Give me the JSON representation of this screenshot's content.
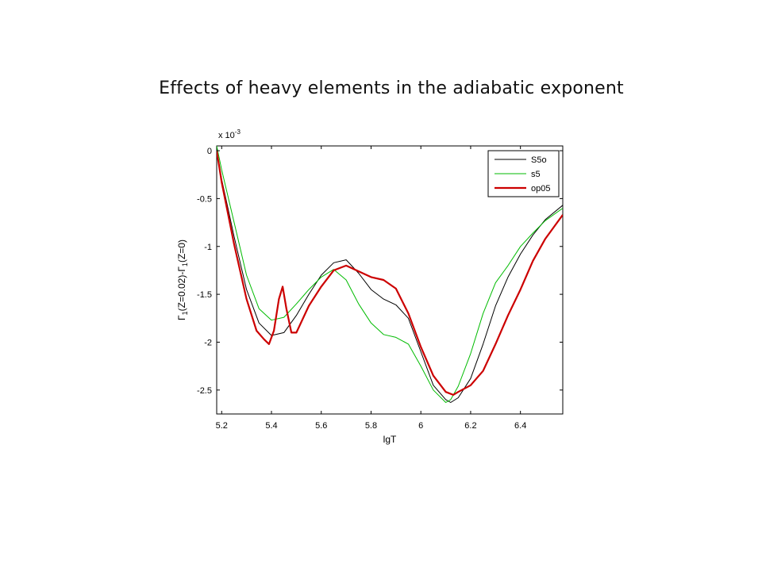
{
  "slide": {
    "title": "Effects of heavy elements in the adiabatic exponent"
  },
  "chart_data": {
    "type": "line",
    "title": "",
    "xlabel": "lgT",
    "ylabel": "Γ1(Z=0.02)-Γ1(Z=0)",
    "ylabel_parts": {
      "g1": "Γ",
      "s1": "1",
      "mid": "(Z=0.02)-Γ",
      "s2": "1",
      "end": "(Z=0)"
    },
    "y_multiplier_label": {
      "base": "x 10",
      "exp": "-3"
    },
    "xlim": [
      5.18,
      6.57
    ],
    "ylim": [
      -2.75,
      0.05
    ],
    "x_ticks": [
      5.2,
      5.4,
      5.6,
      5.8,
      6.0,
      6.2,
      6.4
    ],
    "x_tick_labels": [
      "5.2",
      "5.4",
      "5.6",
      "5.8",
      "6",
      "6.2",
      "6.4"
    ],
    "y_ticks": [
      0,
      -0.5,
      -1,
      -1.5,
      -2,
      -2.5
    ],
    "y_tick_labels": [
      "0",
      "-0.5",
      "-1",
      "-1.5",
      "-2",
      "-2.5"
    ],
    "grid": false,
    "legend_position": "top-right",
    "series": [
      {
        "name": "S5o",
        "color": "#000000",
        "width": 1,
        "points": [
          [
            5.18,
            0.0
          ],
          [
            5.2,
            -0.3
          ],
          [
            5.25,
            -0.9
          ],
          [
            5.3,
            -1.45
          ],
          [
            5.35,
            -1.8
          ],
          [
            5.4,
            -1.93
          ],
          [
            5.45,
            -1.9
          ],
          [
            5.5,
            -1.72
          ],
          [
            5.55,
            -1.5
          ],
          [
            5.6,
            -1.3
          ],
          [
            5.65,
            -1.17
          ],
          [
            5.7,
            -1.14
          ],
          [
            5.75,
            -1.28
          ],
          [
            5.8,
            -1.45
          ],
          [
            5.85,
            -1.55
          ],
          [
            5.9,
            -1.61
          ],
          [
            5.95,
            -1.75
          ],
          [
            6.0,
            -2.1
          ],
          [
            6.05,
            -2.45
          ],
          [
            6.1,
            -2.6
          ],
          [
            6.12,
            -2.63
          ],
          [
            6.15,
            -2.58
          ],
          [
            6.2,
            -2.38
          ],
          [
            6.25,
            -2.02
          ],
          [
            6.3,
            -1.62
          ],
          [
            6.35,
            -1.32
          ],
          [
            6.4,
            -1.08
          ],
          [
            6.45,
            -0.88
          ],
          [
            6.5,
            -0.72
          ],
          [
            6.57,
            -0.57
          ]
        ]
      },
      {
        "name": "s5",
        "color": "#00bb00",
        "width": 1,
        "points": [
          [
            5.18,
            0.05
          ],
          [
            5.2,
            -0.2
          ],
          [
            5.25,
            -0.75
          ],
          [
            5.3,
            -1.3
          ],
          [
            5.35,
            -1.65
          ],
          [
            5.4,
            -1.77
          ],
          [
            5.45,
            -1.74
          ],
          [
            5.5,
            -1.6
          ],
          [
            5.55,
            -1.45
          ],
          [
            5.6,
            -1.32
          ],
          [
            5.65,
            -1.24
          ],
          [
            5.7,
            -1.35
          ],
          [
            5.75,
            -1.6
          ],
          [
            5.8,
            -1.8
          ],
          [
            5.85,
            -1.92
          ],
          [
            5.9,
            -1.95
          ],
          [
            5.95,
            -2.02
          ],
          [
            6.0,
            -2.25
          ],
          [
            6.05,
            -2.5
          ],
          [
            6.1,
            -2.63
          ],
          [
            6.12,
            -2.6
          ],
          [
            6.15,
            -2.46
          ],
          [
            6.2,
            -2.12
          ],
          [
            6.25,
            -1.7
          ],
          [
            6.3,
            -1.38
          ],
          [
            6.35,
            -1.2
          ],
          [
            6.4,
            -1.0
          ],
          [
            6.45,
            -0.86
          ],
          [
            6.5,
            -0.73
          ],
          [
            6.57,
            -0.6
          ]
        ]
      },
      {
        "name": "op05",
        "color": "#cc0000",
        "width": 2.2,
        "points": [
          [
            5.18,
            0.0
          ],
          [
            5.2,
            -0.33
          ],
          [
            5.25,
            -0.98
          ],
          [
            5.3,
            -1.55
          ],
          [
            5.34,
            -1.88
          ],
          [
            5.37,
            -1.97
          ],
          [
            5.39,
            -2.02
          ],
          [
            5.41,
            -1.88
          ],
          [
            5.43,
            -1.55
          ],
          [
            5.445,
            -1.42
          ],
          [
            5.46,
            -1.65
          ],
          [
            5.48,
            -1.9
          ],
          [
            5.5,
            -1.9
          ],
          [
            5.55,
            -1.62
          ],
          [
            5.6,
            -1.42
          ],
          [
            5.65,
            -1.25
          ],
          [
            5.7,
            -1.2
          ],
          [
            5.75,
            -1.26
          ],
          [
            5.8,
            -1.32
          ],
          [
            5.85,
            -1.35
          ],
          [
            5.9,
            -1.44
          ],
          [
            5.95,
            -1.7
          ],
          [
            6.0,
            -2.05
          ],
          [
            6.05,
            -2.35
          ],
          [
            6.1,
            -2.52
          ],
          [
            6.13,
            -2.55
          ],
          [
            6.15,
            -2.52
          ],
          [
            6.2,
            -2.45
          ],
          [
            6.25,
            -2.3
          ],
          [
            6.3,
            -2.02
          ],
          [
            6.35,
            -1.72
          ],
          [
            6.4,
            -1.45
          ],
          [
            6.45,
            -1.15
          ],
          [
            6.5,
            -0.92
          ],
          [
            6.57,
            -0.67
          ]
        ]
      }
    ]
  }
}
